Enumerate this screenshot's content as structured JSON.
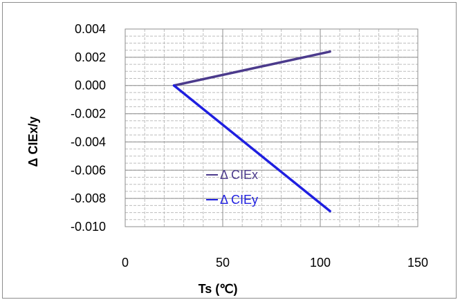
{
  "chart_data": {
    "type": "line",
    "title": "",
    "xlabel": "Ts (℃)",
    "ylabel": "Δ CIEx/y",
    "xlim": [
      0,
      150
    ],
    "ylim": [
      -0.01,
      0.004
    ],
    "x_ticks": [
      "0",
      "50",
      "100",
      "150"
    ],
    "y_ticks": [
      "0.004",
      "0.002",
      "0.000",
      "-0.002",
      "-0.004",
      "-0.006",
      "-0.008",
      "-0.010"
    ],
    "grid": true,
    "legend_position": "inside-center",
    "series": [
      {
        "name": "Δ CIEx",
        "color": "#4b3a8c",
        "x": [
          25,
          105
        ],
        "values": [
          0.0,
          0.0024
        ]
      },
      {
        "name": "Δ CIEy",
        "color": "#1f1fe0",
        "x": [
          25,
          105
        ],
        "values": [
          0.0,
          -0.0089
        ]
      }
    ]
  }
}
